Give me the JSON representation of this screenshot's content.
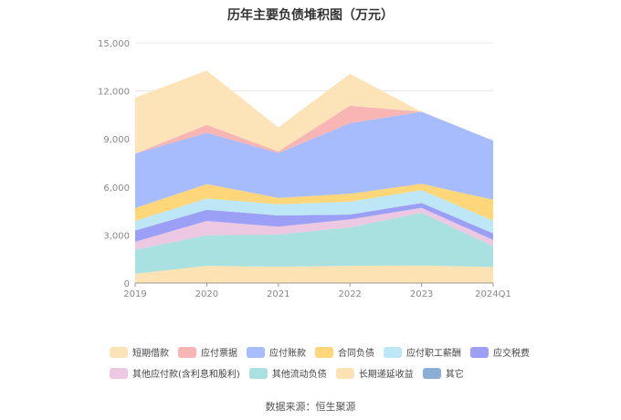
{
  "page": {
    "source": "数据来源：恒生聚源"
  },
  "chart_data": {
    "type": "area",
    "stacked": true,
    "title": "历年主要负债堆积图（万元）",
    "categories": [
      "2019",
      "2020",
      "2021",
      "2022",
      "2023",
      "2024Q1"
    ],
    "ylim": [
      0,
      15000
    ],
    "yticks": [
      "0",
      "3,000",
      "6,000",
      "9,000",
      "12,000",
      "15,000"
    ],
    "grid": true,
    "legend_position": "bottom",
    "series": [
      {
        "name": "其它",
        "color": "#8caed6",
        "values": [
          20,
          20,
          20,
          20,
          20,
          20
        ]
      },
      {
        "name": "长期递延收益",
        "color": "#fde2b3",
        "values": [
          560,
          1060,
          1000,
          1060,
          1080,
          980
        ]
      },
      {
        "name": "其他流动负债",
        "color": "#a8e1e0",
        "values": [
          1500,
          1900,
          2000,
          2400,
          3300,
          1300
        ]
      },
      {
        "name": "其他应付款(含利息和股利)",
        "color": "#ecc8e2",
        "values": [
          500,
          900,
          500,
          500,
          300,
          400
        ]
      },
      {
        "name": "应交税费",
        "color": "#9b9ff5",
        "values": [
          700,
          700,
          700,
          300,
          300,
          400
        ]
      },
      {
        "name": "应付职工薪酬",
        "color": "#bde6f6",
        "values": [
          600,
          700,
          700,
          800,
          800,
          800
        ]
      },
      {
        "name": "合同负债",
        "color": "#ffd67a",
        "values": [
          800,
          900,
          400,
          500,
          400,
          1300
        ]
      },
      {
        "name": "应付账款",
        "color": "#a7bcfc",
        "values": [
          3400,
          3200,
          2800,
          4400,
          4500,
          3700
        ]
      },
      {
        "name": "应付票据",
        "color": "#f8b5b3",
        "values": [
          0,
          500,
          100,
          1100,
          0,
          0
        ]
      },
      {
        "name": "短期借款",
        "color": "#fde3b8",
        "values": [
          3500,
          3400,
          1500,
          2000,
          0,
          0
        ]
      }
    ],
    "legend_order": [
      "短期借款",
      "应付票据",
      "应付账款",
      "合同负债",
      "应付职工薪酬",
      "应交税费",
      "其他应付款(含利息和股利)",
      "其他流动负债",
      "长期递延收益",
      "其它"
    ]
  }
}
